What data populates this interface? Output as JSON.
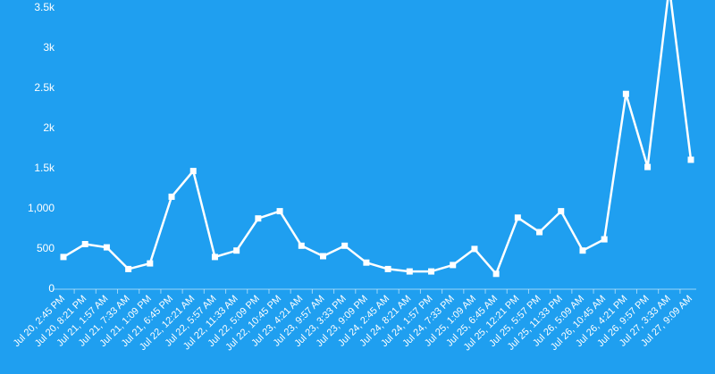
{
  "colors": {
    "background": "#1f9ff0",
    "line": "#ffffff",
    "text": "#ffffff"
  },
  "chart_data": {
    "type": "line",
    "title": "",
    "xlabel": "",
    "ylabel": "",
    "ylim": [
      0,
      3500
    ],
    "yticks": [
      0,
      500,
      1000,
      1500,
      2000,
      2500,
      3000,
      3500
    ],
    "ytick_labels": [
      "0",
      "500",
      "1,000",
      "1.5k",
      "2k",
      "2.5k",
      "3k",
      "3.5k"
    ],
    "grid": false,
    "legend": "none",
    "categories": [
      "Jul 20, 2:45 PM",
      "Jul 20, 8:21 PM",
      "Jul 21, 1:57 AM",
      "Jul 21, 7:33 AM",
      "Jul 21, 1:09 PM",
      "Jul 21, 6:45 PM",
      "Jul 22, 12:21 AM",
      "Jul 22, 5:57 AM",
      "Jul 22, 11:33 AM",
      "Jul 22, 5:09 PM",
      "Jul 22, 10:45 PM",
      "Jul 23, 4:21 AM",
      "Jul 23, 9:57 AM",
      "Jul 23, 3:33 PM",
      "Jul 23, 9:09 PM",
      "Jul 24, 2:45 AM",
      "Jul 24, 8:21 AM",
      "Jul 24, 1:57 PM",
      "Jul 24, 7:33 PM",
      "Jul 25, 1:09 AM",
      "Jul 25, 6:45 AM",
      "Jul 25, 12:21 PM",
      "Jul 25, 5:57 PM",
      "Jul 25, 11:33 PM",
      "Jul 26, 5:09 AM",
      "Jul 26, 10:45 AM",
      "Jul 26, 4:21 PM",
      "Jul 26, 9:57 PM",
      "Jul 27, 3:33 AM",
      "Jul 27, 9:09 AM"
    ],
    "series": [
      {
        "values": [
          390,
          550,
          510,
          240,
          310,
          1140,
          1460,
          390,
          470,
          870,
          960,
          530,
          400,
          530,
          320,
          240,
          210,
          210,
          290,
          490,
          180,
          880,
          700,
          960,
          470,
          610,
          2420,
          1510,
          3750,
          1600
        ]
      }
    ]
  }
}
